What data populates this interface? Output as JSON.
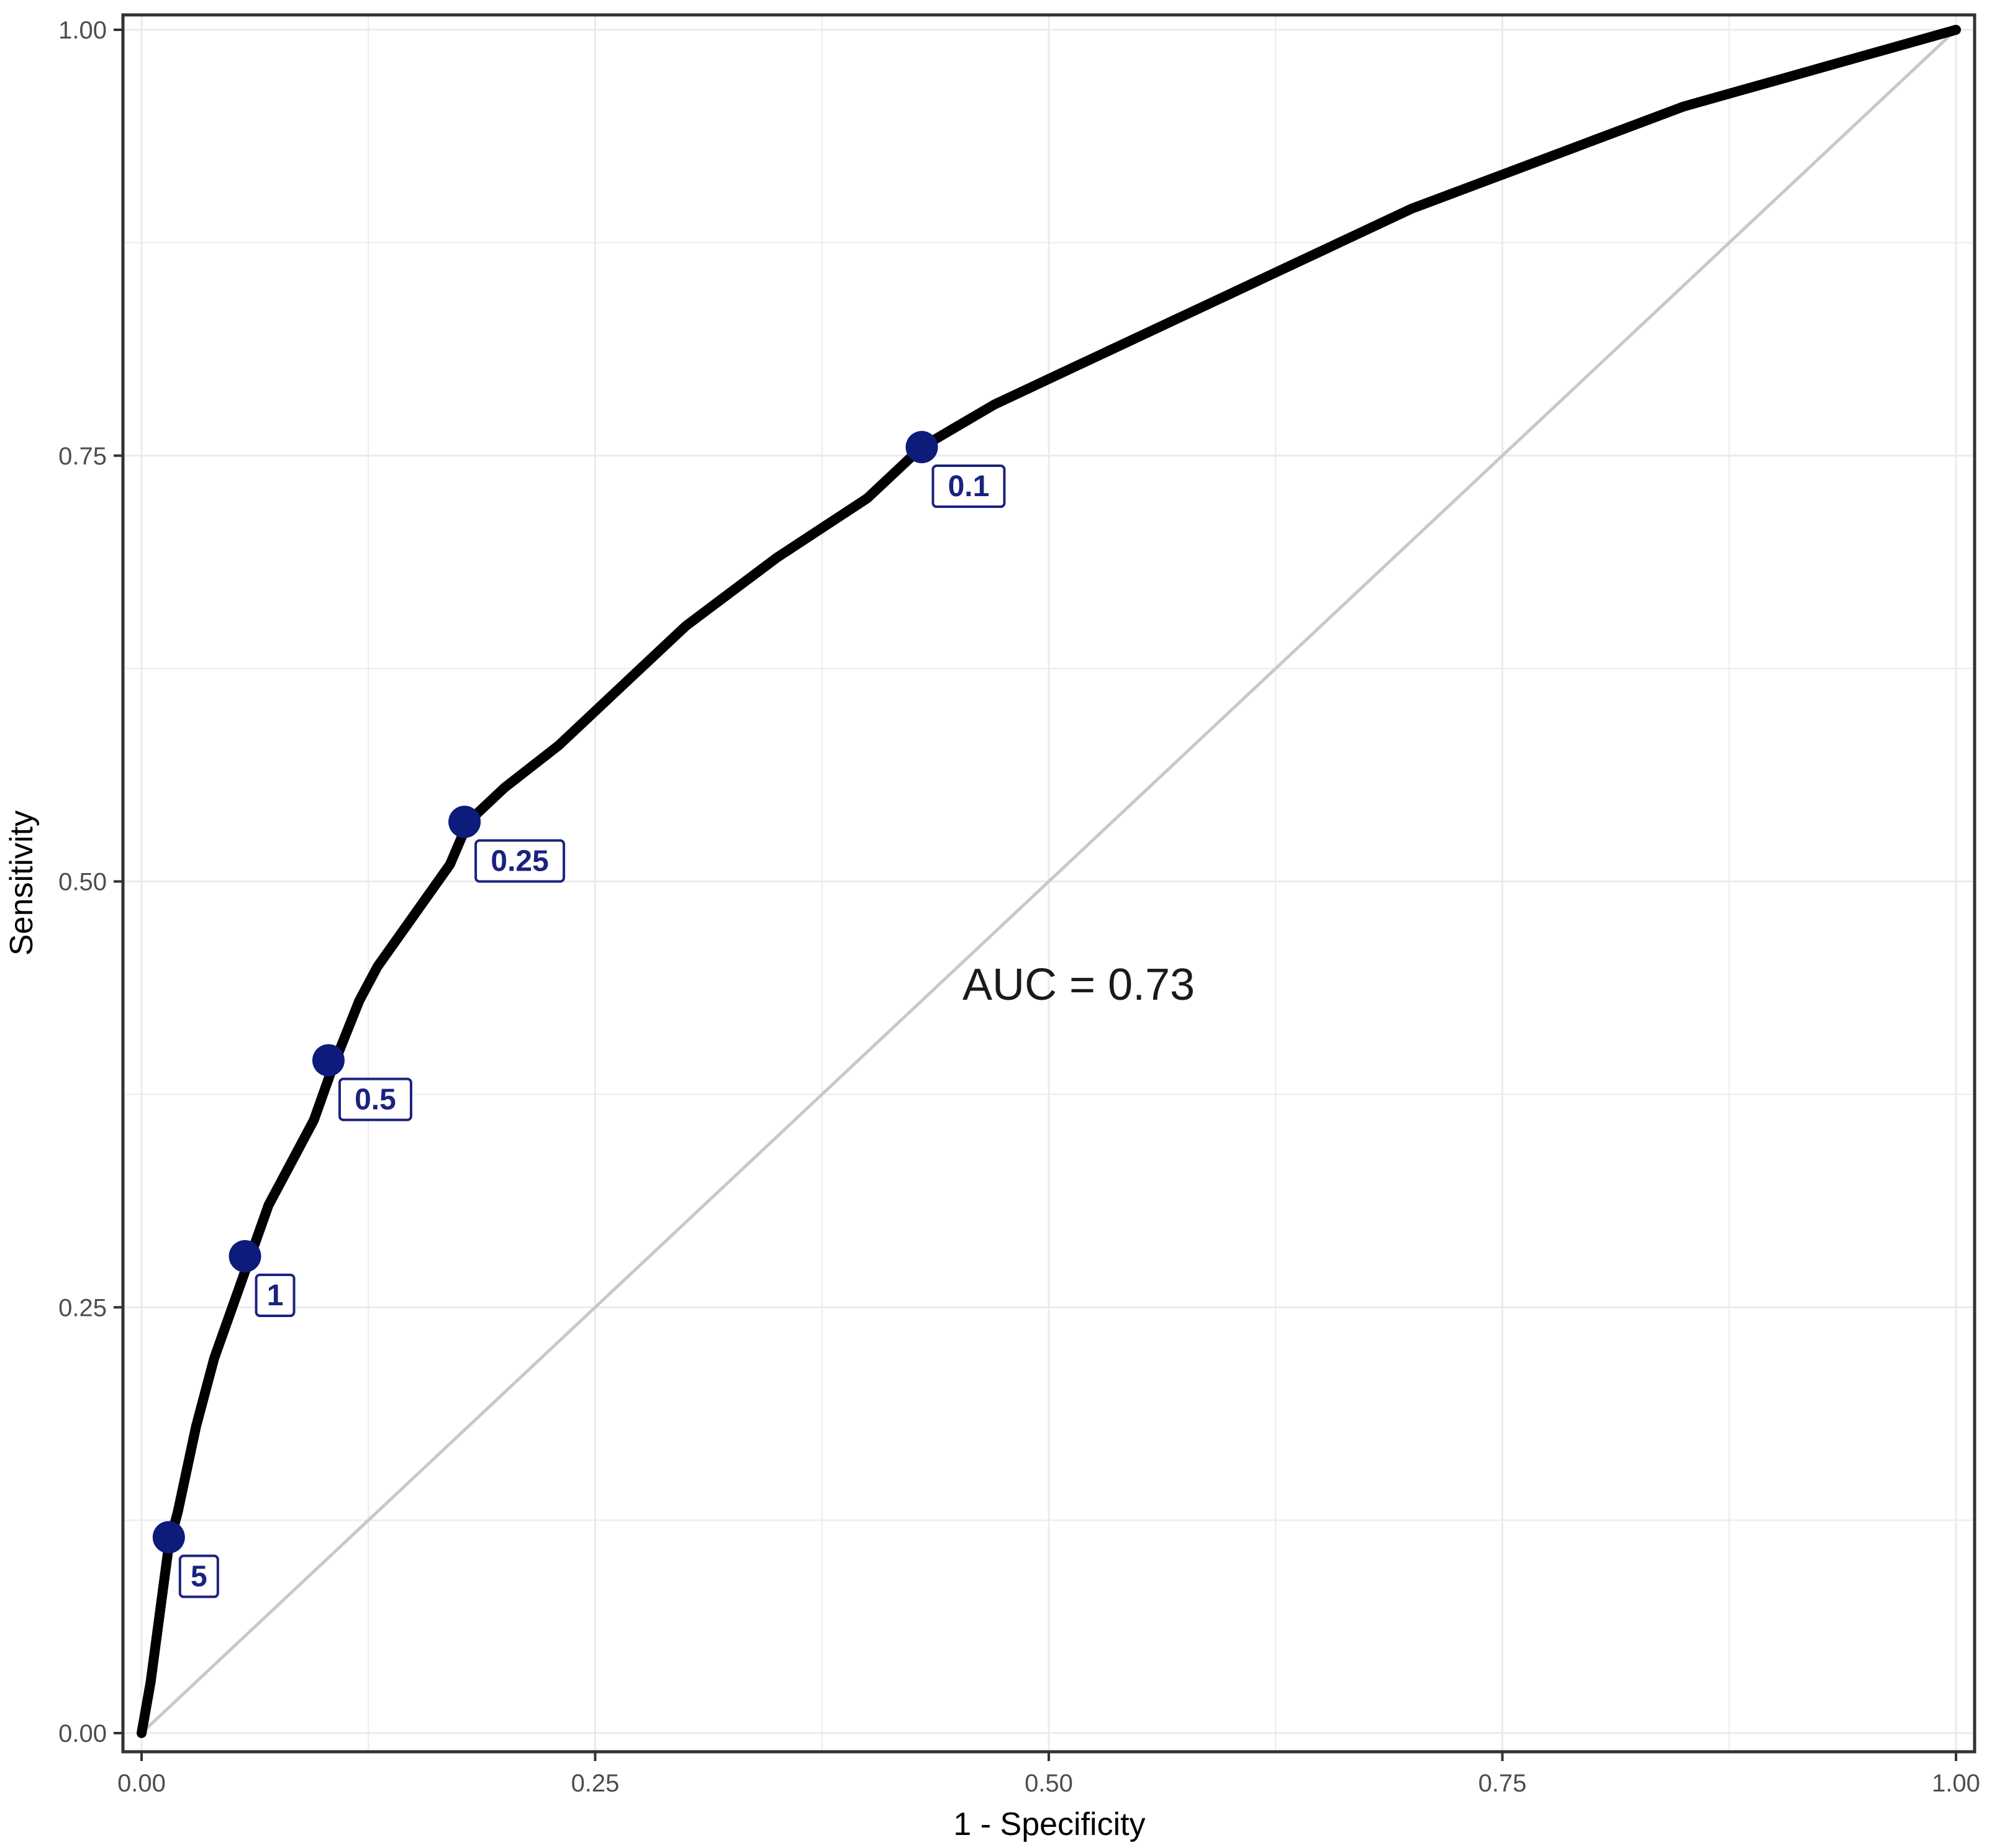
{
  "chart_data": {
    "type": "line",
    "xlabel": "1 - Specificity",
    "ylabel": "Sensitivity",
    "xlim": [
      0,
      1
    ],
    "ylim": [
      0,
      1
    ],
    "x_ticks": [
      "0.00",
      "0.25",
      "0.50",
      "0.75",
      "1.00"
    ],
    "y_ticks": [
      "0.00",
      "0.25",
      "0.50",
      "0.75",
      "1.00"
    ],
    "grid": true,
    "legend": "none",
    "annotation": "AUC = 0.73",
    "series": [
      {
        "values": [
          [
            0.0,
            0.0
          ],
          [
            0.005,
            0.03
          ],
          [
            0.01,
            0.07
          ],
          [
            0.015,
            0.11
          ],
          [
            0.02,
            0.13
          ],
          [
            0.03,
            0.18
          ],
          [
            0.04,
            0.22
          ],
          [
            0.05,
            0.25
          ],
          [
            0.06,
            0.28
          ],
          [
            0.07,
            0.31
          ],
          [
            0.08,
            0.33
          ],
          [
            0.095,
            0.36
          ],
          [
            0.105,
            0.39
          ],
          [
            0.12,
            0.43
          ],
          [
            0.13,
            0.45
          ],
          [
            0.15,
            0.48
          ],
          [
            0.17,
            0.51
          ],
          [
            0.18,
            0.535
          ],
          [
            0.2,
            0.555
          ],
          [
            0.23,
            0.58
          ],
          [
            0.25,
            0.6
          ],
          [
            0.27,
            0.62
          ],
          [
            0.3,
            0.65
          ],
          [
            0.35,
            0.69
          ],
          [
            0.4,
            0.725
          ],
          [
            0.43,
            0.755
          ],
          [
            0.47,
            0.78
          ],
          [
            0.5,
            0.795
          ],
          [
            0.55,
            0.82
          ],
          [
            0.6,
            0.845
          ],
          [
            0.65,
            0.87
          ],
          [
            0.7,
            0.895
          ],
          [
            0.75,
            0.915
          ],
          [
            0.8,
            0.935
          ],
          [
            0.85,
            0.955
          ],
          [
            0.9,
            0.97
          ],
          [
            0.95,
            0.985
          ],
          [
            1.0,
            1.0
          ]
        ],
        "color": "#000000"
      },
      {
        "values": [
          [
            0,
            0
          ],
          [
            1,
            1
          ]
        ],
        "color": "#c8c8c8"
      }
    ],
    "thresholds": [
      {
        "label": "5",
        "x": 0.015,
        "y": 0.115
      },
      {
        "label": "1",
        "x": 0.057,
        "y": 0.28
      },
      {
        "label": "0.5",
        "x": 0.103,
        "y": 0.395
      },
      {
        "label": "0.25",
        "x": 0.178,
        "y": 0.535
      },
      {
        "label": "0.1",
        "x": 0.43,
        "y": 0.755
      }
    ],
    "marker_color": "#0d1b7a"
  }
}
